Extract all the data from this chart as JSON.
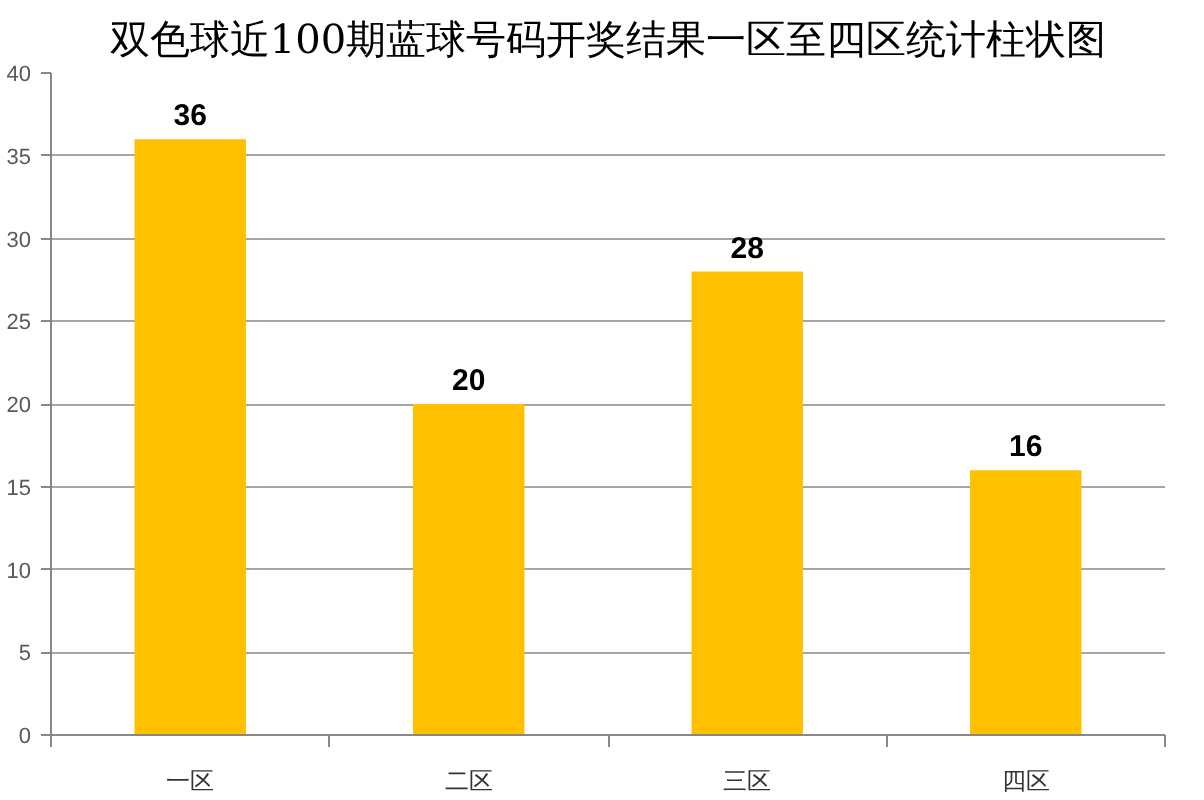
{
  "chart_data": {
    "type": "bar",
    "title": "双色球近100期蓝球号码开奖结果一区至四区统计柱状图",
    "categories": [
      "一区",
      "二区",
      "三区",
      "四区"
    ],
    "values": [
      36,
      20,
      28,
      16
    ],
    "color": "#ffc000",
    "ylim": [
      0,
      40
    ],
    "yticks": [
      0,
      5,
      10,
      15,
      20,
      25,
      30,
      35,
      40
    ],
    "grid": "y",
    "data_labels": true
  }
}
